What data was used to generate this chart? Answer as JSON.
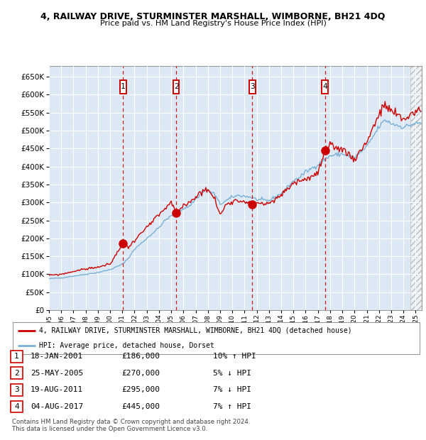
{
  "title": "4, RAILWAY DRIVE, STURMINSTER MARSHALL, WIMBORNE, BH21 4DQ",
  "subtitle": "Price paid vs. HM Land Registry's House Price Index (HPI)",
  "legend_line1": "4, RAILWAY DRIVE, STURMINSTER MARSHALL, WIMBORNE, BH21 4DQ (detached house)",
  "legend_line2": "HPI: Average price, detached house, Dorset",
  "footer1": "Contains HM Land Registry data © Crown copyright and database right 2024.",
  "footer2": "This data is licensed under the Open Government Licence v3.0.",
  "transactions": [
    {
      "num": 1,
      "date": "18-JAN-2001",
      "price": 186000,
      "hpi_diff": "10% ↑ HPI"
    },
    {
      "num": 2,
      "date": "25-MAY-2005",
      "price": 270000,
      "hpi_diff": "5% ↓ HPI"
    },
    {
      "num": 3,
      "date": "19-AUG-2011",
      "price": 295000,
      "hpi_diff": "7% ↓ HPI"
    },
    {
      "num": 4,
      "date": "04-AUG-2017",
      "price": 445000,
      "hpi_diff": "7% ↑ HPI"
    }
  ],
  "transaction_dates_decimal": [
    2001.05,
    2005.4,
    2011.63,
    2017.59
  ],
  "transaction_prices": [
    186000,
    270000,
    295000,
    445000
  ],
  "ylim": [
    0,
    680000
  ],
  "ytick_vals": [
    0,
    50000,
    100000,
    150000,
    200000,
    250000,
    300000,
    350000,
    400000,
    450000,
    500000,
    550000,
    600000,
    650000
  ],
  "xlim_start": 1995.0,
  "xlim_end": 2025.5,
  "background_color": "#ffffff",
  "plot_bg_color": "#dce9f5",
  "red_line_color": "#cc0000",
  "blue_line_color": "#7bafd4",
  "dashed_line_color": "#cc0000",
  "marker_color": "#cc0000",
  "grid_color": "#ffffff",
  "border_color": "#999999",
  "hpi_waypoints_x": [
    1995.0,
    1996.0,
    1997.0,
    1998.0,
    1999.0,
    2000.0,
    2001.0,
    2001.5,
    2002.0,
    2003.0,
    2004.0,
    2004.5,
    2005.5,
    2006.5,
    2007.0,
    2007.8,
    2008.5,
    2009.0,
    2009.5,
    2010.0,
    2010.5,
    2011.5,
    2012.0,
    2013.0,
    2014.0,
    2015.0,
    2015.5,
    2016.0,
    2017.0,
    2018.0,
    2019.0,
    2020.0,
    2021.0,
    2022.0,
    2022.5,
    2023.0,
    2024.0,
    2025.0
  ],
  "hpi_waypoints_y": [
    88000,
    90000,
    95000,
    100000,
    105000,
    113000,
    128000,
    145000,
    170000,
    200000,
    230000,
    250000,
    275000,
    290000,
    310000,
    335000,
    325000,
    295000,
    305000,
    315000,
    320000,
    315000,
    308000,
    305000,
    325000,
    360000,
    370000,
    385000,
    405000,
    430000,
    435000,
    425000,
    455000,
    510000,
    530000,
    520000,
    510000,
    520000
  ],
  "red_waypoints_x": [
    1995.0,
    1996.0,
    1997.0,
    1998.0,
    1999.0,
    2000.0,
    2001.05,
    2001.5,
    2002.0,
    2003.0,
    2004.0,
    2005.0,
    2005.4,
    2006.0,
    2007.0,
    2007.8,
    2008.5,
    2009.0,
    2009.5,
    2010.0,
    2011.0,
    2011.63,
    2012.0,
    2013.0,
    2014.0,
    2015.0,
    2016.0,
    2017.0,
    2017.59,
    2018.0,
    2019.0,
    2020.0,
    2021.0,
    2022.0,
    2022.5,
    2023.0,
    2024.0,
    2025.0
  ],
  "red_waypoints_y": [
    97000,
    100000,
    108000,
    115000,
    120000,
    128000,
    186000,
    175000,
    195000,
    230000,
    265000,
    300000,
    270000,
    290000,
    315000,
    340000,
    315000,
    265000,
    295000,
    305000,
    305000,
    295000,
    300000,
    295000,
    320000,
    355000,
    365000,
    380000,
    445000,
    455000,
    450000,
    420000,
    470000,
    545000,
    570000,
    555000,
    530000,
    555000
  ]
}
